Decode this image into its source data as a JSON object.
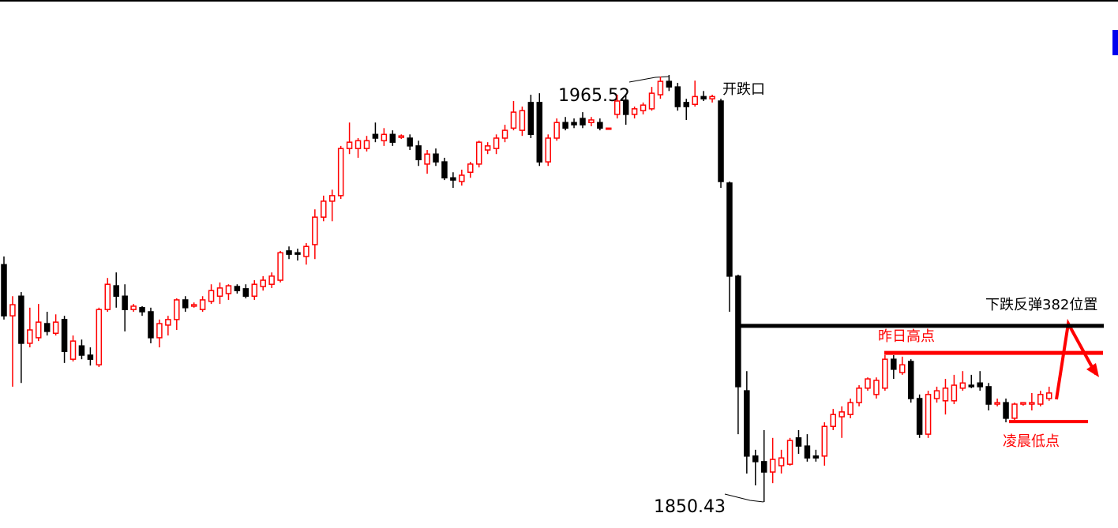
{
  "chart_data": {
    "type": "candlestick",
    "up_color": "#ff0000",
    "down_color": "#000000",
    "open": [
      1914.4,
      1900.6,
      1905.9,
      1893.2,
      1894.7,
      1898.5,
      1895.9,
      1899.6,
      1888.9,
      1892.5,
      1890.0,
      1887.4,
      1902.3,
      1908.7,
      1905.9,
      1902.3,
      1902.8,
      1901.7,
      1894.7,
      1898.1,
      1899.6,
      1904.9,
      1903.2,
      1902.3,
      1904.5,
      1905.9,
      1906.6,
      1908.5,
      1907.9,
      1905.9,
      1908.5,
      1909.1,
      1910.2,
      1918.1,
      1917.6,
      1916.6,
      1919.8,
      1927.2,
      1931.5,
      1933.0,
      1945.7,
      1945.7,
      1945.7,
      1949.5,
      1947.8,
      1949.5,
      1948.7,
      1948.5,
      1946.4,
      1941.5,
      1944.2,
      1942.1,
      1937.8,
      1936.8,
      1939.3,
      1941.5,
      1945.3,
      1945.7,
      1948.5,
      1951.2,
      1950.6,
      1958.1,
      1958.1,
      1942.1,
      1948.5,
      1952.7,
      1952.7,
      1953.8,
      1952.7,
      1952.7,
      1951.0,
      1954.9,
      1958.5,
      1954.9,
      1955.9,
      1956.4,
      1960.2,
      1963.8,
      1962.3,
      1958.1,
      1957.6,
      1959.7,
      1959.1,
      1958.5,
      1936.4,
      1911.3,
      1880.4,
      1862.8,
      1861.3,
      1858.5,
      1860.2,
      1860.6,
      1867.7,
      1865.5,
      1862.8,
      1862.8,
      1870.8,
      1873.4,
      1874.0,
      1877.2,
      1881.1,
      1879.4,
      1881.1,
      1888.9,
      1885.3,
      1888.3,
      1878.3,
      1868.7,
      1878.3,
      1877.7,
      1877.7,
      1881.1,
      1881.9,
      1882.5,
      1881.5,
      1876.8,
      1877.2,
      1873.0,
      1876.8,
      1876.8,
      1876.8,
      1878.3
    ],
    "high": [
      1916.6,
      1905.9,
      1907.0,
      1902.8,
      1903.8,
      1901.7,
      1901.0,
      1900.6,
      1895.3,
      1894.2,
      1892.1,
      1902.8,
      1910.8,
      1912.3,
      1909.1,
      1903.8,
      1903.2,
      1902.8,
      1899.6,
      1900.6,
      1905.3,
      1905.9,
      1904.2,
      1905.9,
      1909.1,
      1909.6,
      1909.1,
      1909.1,
      1909.1,
      1910.2,
      1911.3,
      1912.3,
      1918.1,
      1919.3,
      1918.7,
      1920.2,
      1929.3,
      1933.0,
      1934.6,
      1946.4,
      1952.7,
      1948.5,
      1949.1,
      1952.7,
      1951.2,
      1950.6,
      1949.5,
      1949.5,
      1947.8,
      1945.3,
      1945.7,
      1943.2,
      1939.3,
      1940.0,
      1942.1,
      1947.8,
      1947.4,
      1949.5,
      1952.1,
      1958.5,
      1957.0,
      1960.2,
      1960.6,
      1949.5,
      1953.8,
      1954.2,
      1953.8,
      1955.5,
      1954.2,
      1953.8,
      1951.2,
      1960.2,
      1960.2,
      1957.0,
      1958.1,
      1962.3,
      1965.1,
      1965.52,
      1963.4,
      1959.1,
      1964.0,
      1961.2,
      1960.2,
      1959.1,
      1936.8,
      1911.7,
      1885.7,
      1864.5,
      1869.8,
      1867.7,
      1864.5,
      1867.7,
      1869.8,
      1868.7,
      1864.5,
      1871.9,
      1875.5,
      1876.2,
      1878.3,
      1881.9,
      1884.0,
      1884.0,
      1890.0,
      1890.0,
      1889.6,
      1888.9,
      1879.4,
      1880.4,
      1881.5,
      1883.6,
      1884.7,
      1885.7,
      1884.7,
      1885.7,
      1882.5,
      1878.3,
      1878.3,
      1877.2,
      1877.2,
      1879.8,
      1880.4,
      1881.5
    ],
    "low": [
      1899.6,
      1881.5,
      1882.5,
      1892.1,
      1893.8,
      1895.3,
      1895.3,
      1887.9,
      1888.3,
      1888.9,
      1887.2,
      1886.8,
      1901.7,
      1902.8,
      1896.4,
      1901.7,
      1900.6,
      1893.2,
      1892.1,
      1895.3,
      1896.8,
      1901.7,
      1902.8,
      1901.7,
      1903.8,
      1903.8,
      1904.9,
      1906.6,
      1905.3,
      1904.9,
      1907.4,
      1908.1,
      1909.6,
      1915.9,
      1915.5,
      1914.4,
      1915.9,
      1926.1,
      1926.1,
      1932.1,
      1944.2,
      1943.2,
      1944.9,
      1947.4,
      1946.4,
      1946.4,
      1948.3,
      1945.3,
      1941.0,
      1938.9,
      1941.0,
      1937.2,
      1935.1,
      1935.7,
      1937.8,
      1940.6,
      1944.2,
      1944.2,
      1947.4,
      1950.6,
      1949.1,
      1948.5,
      1941.0,
      1941.0,
      1947.8,
      1950.6,
      1951.2,
      1951.2,
      1951.7,
      1950.6,
      1951.0,
      1953.8,
      1952.1,
      1953.8,
      1954.9,
      1955.9,
      1959.1,
      1961.2,
      1955.9,
      1953.4,
      1957.0,
      1958.5,
      1958.1,
      1935.1,
      1901.7,
      1868.7,
      1858.1,
      1854.9,
      1850.43,
      1855.5,
      1858.1,
      1860.2,
      1863.4,
      1861.3,
      1861.3,
      1860.2,
      1869.8,
      1867.7,
      1873.0,
      1876.2,
      1880.4,
      1878.3,
      1880.4,
      1883.6,
      1884.7,
      1877.2,
      1867.7,
      1867.7,
      1877.2,
      1874.0,
      1876.8,
      1880.4,
      1881.1,
      1880.4,
      1875.1,
      1876.2,
      1871.9,
      1872.5,
      1876.4,
      1875.1,
      1876.2,
      1877.7
    ],
    "close": [
      1900.6,
      1903.6,
      1893.2,
      1896.8,
      1898.9,
      1896.4,
      1898.9,
      1891.0,
      1893.8,
      1890.0,
      1888.9,
      1902.3,
      1909.1,
      1905.9,
      1902.3,
      1903.2,
      1901.7,
      1894.7,
      1898.5,
      1899.6,
      1904.9,
      1902.8,
      1903.6,
      1904.9,
      1907.4,
      1908.1,
      1908.7,
      1907.4,
      1905.9,
      1909.1,
      1910.2,
      1911.3,
      1917.6,
      1917.2,
      1917.2,
      1919.3,
      1927.2,
      1931.5,
      1933.0,
      1945.7,
      1947.4,
      1947.8,
      1947.8,
      1948.5,
      1949.5,
      1947.4,
      1949.1,
      1946.4,
      1942.7,
      1944.2,
      1942.1,
      1937.8,
      1937.2,
      1938.5,
      1941.5,
      1947.4,
      1946.4,
      1948.5,
      1950.6,
      1955.5,
      1955.9,
      1949.5,
      1942.1,
      1948.5,
      1952.7,
      1951.2,
      1952.1,
      1952.1,
      1953.4,
      1951.2,
      1951.2,
      1958.5,
      1954.9,
      1956.4,
      1957.4,
      1960.6,
      1963.8,
      1962.3,
      1957.0,
      1957.0,
      1959.7,
      1959.1,
      1959.7,
      1936.8,
      1911.3,
      1881.5,
      1862.8,
      1861.3,
      1858.5,
      1861.9,
      1862.3,
      1867.0,
      1865.5,
      1862.3,
      1862.3,
      1870.8,
      1874.0,
      1874.7,
      1877.2,
      1881.1,
      1883.6,
      1883.2,
      1888.9,
      1886.2,
      1887.4,
      1878.3,
      1868.7,
      1879.4,
      1880.4,
      1881.1,
      1881.9,
      1882.5,
      1881.5,
      1881.5,
      1876.8,
      1877.2,
      1873.0,
      1876.8,
      1877.2,
      1877.2,
      1879.4,
      1879.8
    ],
    "annotations": [
      {
        "text": "开跌口"
      },
      {
        "value": 1965.52
      },
      {
        "value": 1850.43
      }
    ],
    "levels": [
      {
        "label": "下跌反弹382位置",
        "value": 1897.9,
        "color": "#000000"
      },
      {
        "label": "昨日高点",
        "value": 1890.6,
        "color": "#ff0000"
      },
      {
        "label": "凌晨低点",
        "value": 1872.1,
        "color": "#ff0000"
      }
    ]
  }
}
